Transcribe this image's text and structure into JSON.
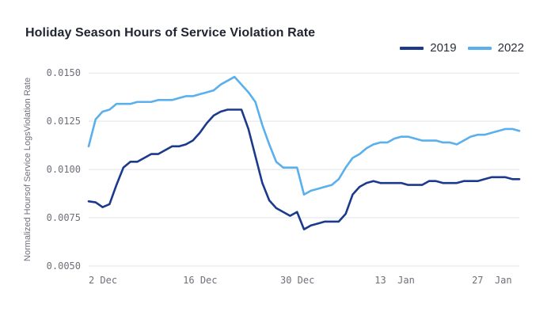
{
  "chart_data": {
    "type": "line",
    "title": "Holiday Season Hours of Service Violation Rate",
    "xlabel": "",
    "ylabel": "Normalized Hoursof Service LogsViolation Rate",
    "x_tick_labels": [
      "2 Dec",
      "16 Dec",
      "30 Dec",
      "13  Jan",
      "27  Jan"
    ],
    "x_tick_days": [
      0,
      14,
      28,
      42,
      56
    ],
    "y_ticks": [
      "0.0050",
      "0.0075",
      "0.0100",
      "0.0125",
      "0.0150"
    ],
    "ylim": [
      0.005,
      0.0155
    ],
    "xlim_days": [
      0,
      62
    ],
    "grid": "horizontal",
    "legend_position": "top-right",
    "x_days": [
      0,
      1,
      2,
      3,
      4,
      5,
      6,
      7,
      8,
      9,
      10,
      11,
      12,
      13,
      14,
      15,
      16,
      17,
      18,
      19,
      20,
      21,
      22,
      23,
      24,
      25,
      26,
      27,
      28,
      29,
      30,
      31,
      32,
      33,
      34,
      35,
      36,
      37,
      38,
      39,
      40,
      41,
      42,
      43,
      44,
      45,
      46,
      47,
      48,
      49,
      50,
      51,
      52,
      53,
      54,
      55,
      56,
      57,
      58,
      59,
      60,
      61,
      62
    ],
    "series": [
      {
        "name": "2019",
        "color": "#1b3a8c",
        "values": [
          0.00835,
          0.0083,
          0.00805,
          0.0082,
          0.0092,
          0.0101,
          0.0104,
          0.0104,
          0.0106,
          0.0108,
          0.0108,
          0.011,
          0.0112,
          0.0112,
          0.0113,
          0.0115,
          0.0119,
          0.0124,
          0.0128,
          0.013,
          0.0131,
          0.0131,
          0.0131,
          0.0121,
          0.0107,
          0.0093,
          0.0084,
          0.008,
          0.0078,
          0.0076,
          0.0078,
          0.0069,
          0.0071,
          0.0072,
          0.0073,
          0.0073,
          0.0073,
          0.0077,
          0.0087,
          0.0091,
          0.0093,
          0.0094,
          0.0093,
          0.0093,
          0.0093,
          0.0093,
          0.0092,
          0.0092,
          0.0092,
          0.0094,
          0.0094,
          0.0093,
          0.0093,
          0.0093,
          0.0094,
          0.0094,
          0.0094,
          0.0095,
          0.0096,
          0.0096,
          0.0096,
          0.0095,
          0.0095
        ]
      },
      {
        "name": "2022",
        "color": "#5ab0ec",
        "values": [
          0.0112,
          0.0126,
          0.013,
          0.0131,
          0.0134,
          0.0134,
          0.0134,
          0.0135,
          0.0135,
          0.0135,
          0.0136,
          0.0136,
          0.0136,
          0.0137,
          0.0138,
          0.0138,
          0.0139,
          0.014,
          0.0141,
          0.0144,
          0.0146,
          0.0148,
          0.0144,
          0.014,
          0.0135,
          0.0123,
          0.0113,
          0.0104,
          0.0101,
          0.0101,
          0.0101,
          0.0087,
          0.0089,
          0.009,
          0.0091,
          0.0092,
          0.0095,
          0.0101,
          0.0106,
          0.0108,
          0.0111,
          0.0113,
          0.0114,
          0.0114,
          0.0116,
          0.0117,
          0.0117,
          0.0116,
          0.0115,
          0.0115,
          0.0115,
          0.0114,
          0.0114,
          0.0113,
          0.0115,
          0.0117,
          0.0118,
          0.0118,
          0.0119,
          0.012,
          0.0121,
          0.0121,
          0.012
        ]
      }
    ]
  }
}
